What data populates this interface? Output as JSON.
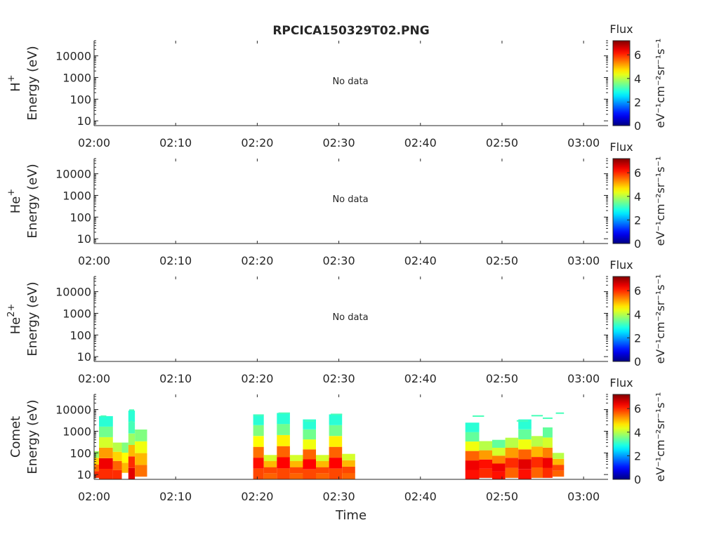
{
  "title": "RPCICA150329T02.PNG",
  "x_axis_label": "Time",
  "colorbar_label": "Flux",
  "colorbar_unit": "eV⁻¹cm⁻²sr⁻¹s⁻¹",
  "colorbar_ticks": [
    "0",
    "2",
    "4",
    "6"
  ],
  "colorbar_range": [
    0,
    7.2
  ],
  "x_ticks": [
    "02:00",
    "02:10",
    "02:20",
    "02:30",
    "02:40",
    "02:50",
    "03:00"
  ],
  "y_ticks": [
    "10",
    "100",
    "1000",
    "10000"
  ],
  "no_data_text": "No data",
  "chart_data": [
    {
      "type": "heatmap",
      "panel": "H+",
      "species_label": "H",
      "species_sup": "+",
      "ylabel": "Energy (eV)",
      "x_range": [
        "02:00",
        "03:03"
      ],
      "ylim": [
        6,
        50000
      ],
      "log_y": true,
      "has_data": false,
      "annotation": "No data"
    },
    {
      "type": "heatmap",
      "panel": "He+",
      "species_label": "He",
      "species_sup": "+",
      "ylabel": "Energy (eV)",
      "x_range": [
        "02:00",
        "03:03"
      ],
      "ylim": [
        6,
        50000
      ],
      "log_y": true,
      "has_data": false,
      "annotation": "No data"
    },
    {
      "type": "heatmap",
      "panel": "He2+",
      "species_label": "He",
      "species_sup": "2+",
      "ylabel": "Energy (eV)",
      "x_range": [
        "02:00",
        "03:03"
      ],
      "ylim": [
        6,
        50000
      ],
      "log_y": true,
      "has_data": false,
      "annotation": "No data"
    },
    {
      "type": "heatmap",
      "panel": "Comet",
      "species_label": "Comet",
      "species_sup": "",
      "ylabel": "Energy (eV)",
      "xlabel": "Time",
      "x_range": [
        "02:00",
        "03:03"
      ],
      "ylim": [
        6,
        50000
      ],
      "log_y": true,
      "has_data": true,
      "colormap": "jet",
      "color_range": [
        0,
        7.2
      ],
      "columns": [
        {
          "t0": 0.0,
          "t1": 0.6,
          "emin": 7,
          "emax": 120,
          "flux": [
            6.0,
            5.5,
            4.8,
            3.8
          ]
        },
        {
          "t0": 0.6,
          "t1": 2.3,
          "emin": 6,
          "emax": 5000,
          "flux": [
            6.0,
            6.4,
            5.2,
            4.2,
            3.5,
            3.0
          ]
        },
        {
          "t0": 2.3,
          "t1": 3.4,
          "emin": 6,
          "emax": 300,
          "flux": [
            6.0,
            5.6,
            4.8,
            4.0
          ]
        },
        {
          "t0": 3.4,
          "t1": 4.2,
          "emin": 12,
          "emax": 300,
          "flux": [
            5.0,
            4.5,
            3.6
          ]
        },
        {
          "t0": 4.2,
          "t1": 5.0,
          "emin": 6,
          "emax": 9000,
          "flux": [
            6.5,
            6.0,
            5.0,
            3.8,
            3.2,
            3.0
          ]
        },
        {
          "t0": 5.0,
          "t1": 6.5,
          "emin": 8,
          "emax": 1200,
          "flux": [
            5.5,
            5.0,
            4.4,
            3.6
          ]
        },
        {
          "t0": 19.5,
          "t1": 20.8,
          "emin": 6,
          "emax": 6000,
          "flux": [
            5.8,
            6.2,
            5.5,
            4.5,
            3.6,
            3.0
          ]
        },
        {
          "t0": 20.8,
          "t1": 22.4,
          "emin": 6,
          "emax": 80,
          "flux": [
            5.6,
            5.8,
            5.0,
            4.2
          ]
        },
        {
          "t0": 22.4,
          "t1": 24.0,
          "emin": 6,
          "emax": 7000,
          "flux": [
            5.8,
            6.3,
            5.6,
            4.6,
            3.5,
            3.0
          ]
        },
        {
          "t0": 24.0,
          "t1": 25.6,
          "emin": 6,
          "emax": 80,
          "flux": [
            5.6,
            5.8,
            5.0,
            4.2
          ]
        },
        {
          "t0": 25.6,
          "t1": 27.2,
          "emin": 6,
          "emax": 3500,
          "flux": [
            5.8,
            6.3,
            5.6,
            4.4,
            3.5,
            3.0
          ]
        },
        {
          "t0": 27.2,
          "t1": 28.8,
          "emin": 6,
          "emax": 80,
          "flux": [
            5.6,
            5.8,
            5.0,
            4.2
          ]
        },
        {
          "t0": 28.8,
          "t1": 30.4,
          "emin": 6,
          "emax": 6000,
          "flux": [
            5.8,
            6.3,
            5.6,
            4.6,
            3.5,
            3.0
          ]
        },
        {
          "t0": 30.4,
          "t1": 32.0,
          "emin": 6,
          "emax": 90,
          "flux": [
            5.6,
            5.8,
            5.0,
            4.2
          ]
        },
        {
          "t0": 45.5,
          "t1": 47.2,
          "emin": 6,
          "emax": 2500,
          "flux": [
            6.2,
            6.4,
            5.6,
            4.4,
            3.4,
            3.0
          ]
        },
        {
          "t0": 47.2,
          "t1": 48.8,
          "emin": 7,
          "emax": 350,
          "flux": [
            6.0,
            6.2,
            5.2,
            4.0
          ]
        },
        {
          "t0": 48.8,
          "t1": 50.4,
          "emin": 6,
          "emax": 400,
          "flux": [
            6.2,
            6.4,
            5.4,
            4.2,
            3.4
          ]
        },
        {
          "t0": 50.4,
          "t1": 52.0,
          "emin": 7,
          "emax": 500,
          "flux": [
            5.6,
            6.0,
            5.2,
            4.0
          ]
        },
        {
          "t0": 52.0,
          "t1": 53.6,
          "emin": 6,
          "emax": 3500,
          "flux": [
            6.2,
            6.5,
            5.6,
            4.4,
            3.4,
            3.0
          ]
        },
        {
          "t0": 53.6,
          "t1": 55.0,
          "emin": 7,
          "emax": 600,
          "flux": [
            5.6,
            6.0,
            5.0,
            4.0
          ]
        },
        {
          "t0": 55.0,
          "t1": 56.2,
          "emin": 7,
          "emax": 1500,
          "flux": [
            6.0,
            6.4,
            5.4,
            4.2,
            3.4
          ]
        },
        {
          "t0": 56.2,
          "t1": 57.6,
          "emin": 8,
          "emax": 100,
          "flux": [
            5.6,
            5.8,
            5.0,
            4.0
          ]
        }
      ],
      "streaks": [
        {
          "t0": 0.8,
          "t1": 1.5,
          "e": 5000
        },
        {
          "t0": 4.3,
          "t1": 4.9,
          "e": 9500
        },
        {
          "t0": 4.4,
          "t1": 4.8,
          "e": 2800
        },
        {
          "t0": 19.6,
          "t1": 20.8,
          "e": 5500
        },
        {
          "t0": 22.6,
          "t1": 24.0,
          "e": 6800
        },
        {
          "t0": 25.8,
          "t1": 27.0,
          "e": 3000
        },
        {
          "t0": 29.0,
          "t1": 30.4,
          "e": 6000
        },
        {
          "t0": 46.4,
          "t1": 47.8,
          "e": 5000
        },
        {
          "t0": 51.8,
          "t1": 53.2,
          "e": 3000
        },
        {
          "t0": 53.6,
          "t1": 55.0,
          "e": 5200
        },
        {
          "t0": 55.0,
          "t1": 56.2,
          "e": 4000
        },
        {
          "t0": 56.6,
          "t1": 57.6,
          "e": 6800
        }
      ]
    }
  ]
}
